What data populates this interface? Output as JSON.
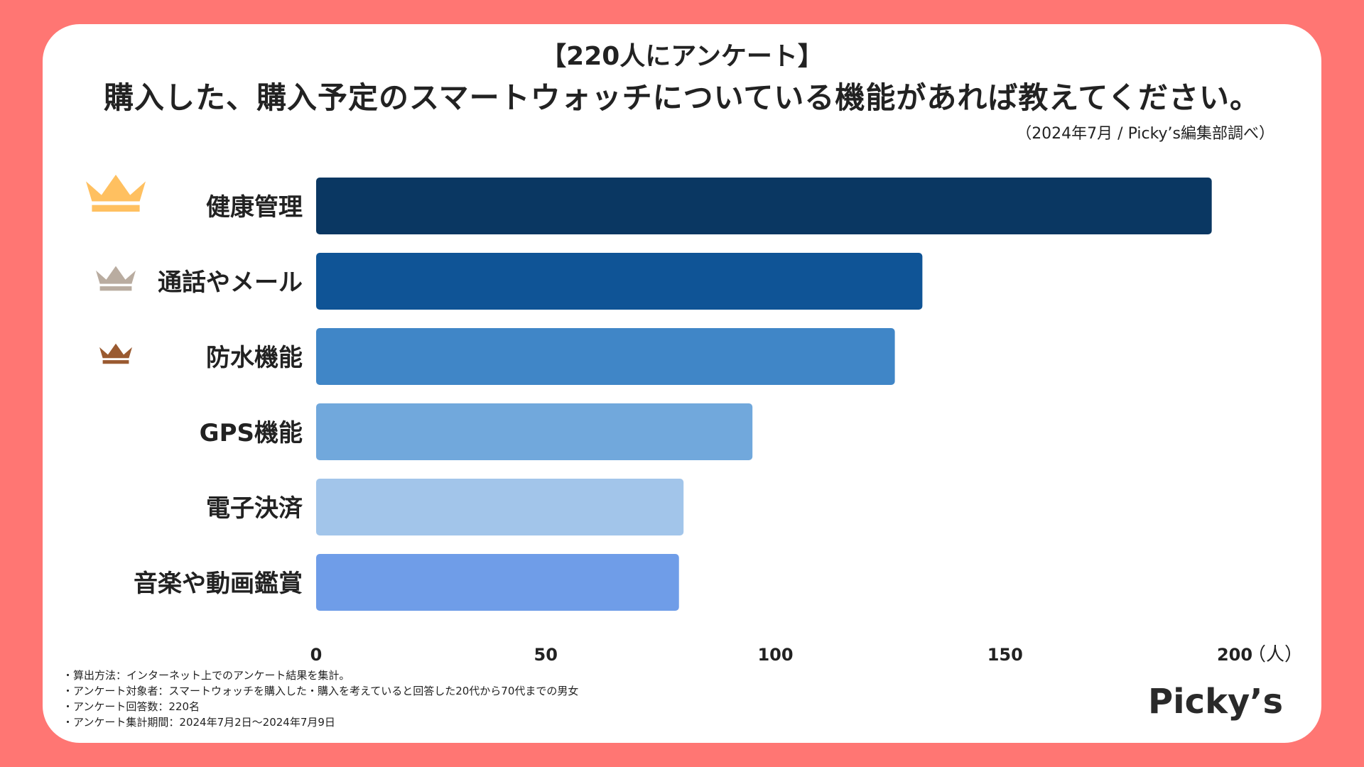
{
  "header": {
    "title_small": "【220人にアンケート】",
    "title_main": "購入した、購入予定のスマートウォッチについている機能があれば教えてください。",
    "source": "（2024年7月 / Picky’s編集部調べ）"
  },
  "chart_data": {
    "type": "bar",
    "orientation": "horizontal",
    "categories": [
      "健康管理",
      "通話やメール",
      "防水機能",
      "GPS機能",
      "電子決済",
      "音楽や動画鑑賞"
    ],
    "values": [
      195,
      132,
      126,
      95,
      80,
      79
    ],
    "colors": [
      "#0a3762",
      "#0f5496",
      "#4086c7",
      "#71a8dc",
      "#a2c5ea",
      "#6f9de8"
    ],
    "xticks": [
      0,
      50,
      100,
      150,
      200
    ],
    "xlim": [
      0,
      200
    ],
    "xunit": "（人）",
    "rank_icons": [
      {
        "rank": 1,
        "color": "#ffc060",
        "icon": "crown-gold-icon"
      },
      {
        "rank": 2,
        "color": "#b9aca0",
        "icon": "crown-silver-icon"
      },
      {
        "rank": 3,
        "color": "#9a5a30",
        "icon": "crown-bronze-icon"
      }
    ]
  },
  "notes": [
    "・算出方法：インターネット上でのアンケート結果を集計。",
    "・アンケート対象者：スマートウォッチを購入した・購入を考えていると回答した20代から70代までの男女",
    "・アンケート回答数：220名",
    "・アンケート集計期間：2024年7月2日〜2024年7月9日"
  ],
  "brand": {
    "logo_text": "Picky’s"
  }
}
